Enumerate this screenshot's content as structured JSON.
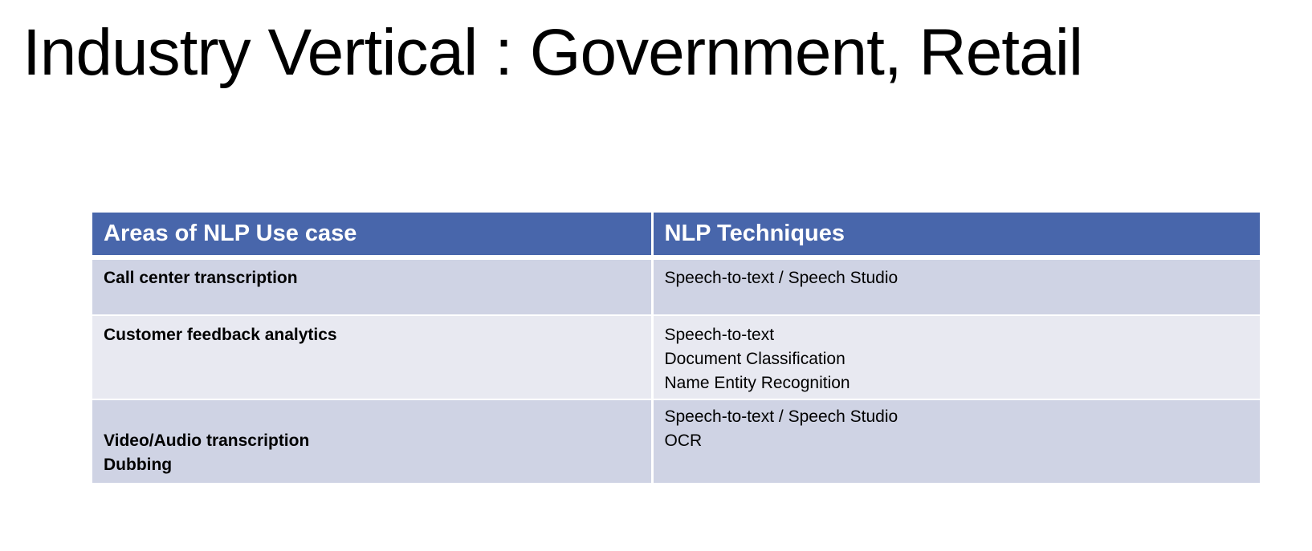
{
  "slide": {
    "title": "Industry Vertical : Government, Retail"
  },
  "table": {
    "headers": {
      "area": "Areas of NLP Use case",
      "techniques": "NLP Techniques"
    },
    "rows": [
      {
        "area_lines": [
          "Call center transcription"
        ],
        "technique_lines": [
          "Speech-to-text / Speech Studio"
        ]
      },
      {
        "area_lines": [
          "Customer feedback analytics"
        ],
        "technique_lines": [
          "Speech-to-text",
          "Document Classification",
          "Name Entity Recognition"
        ]
      },
      {
        "area_lines": [
          "Video/Audio transcription",
          "Dubbing"
        ],
        "technique_lines": [
          "Speech-to-text / Speech Studio",
          "OCR"
        ]
      }
    ]
  },
  "colors": {
    "header_bg": "#4866ab",
    "row_odd_bg": "#cfd3e4",
    "row_even_bg": "#e8e9f1"
  }
}
